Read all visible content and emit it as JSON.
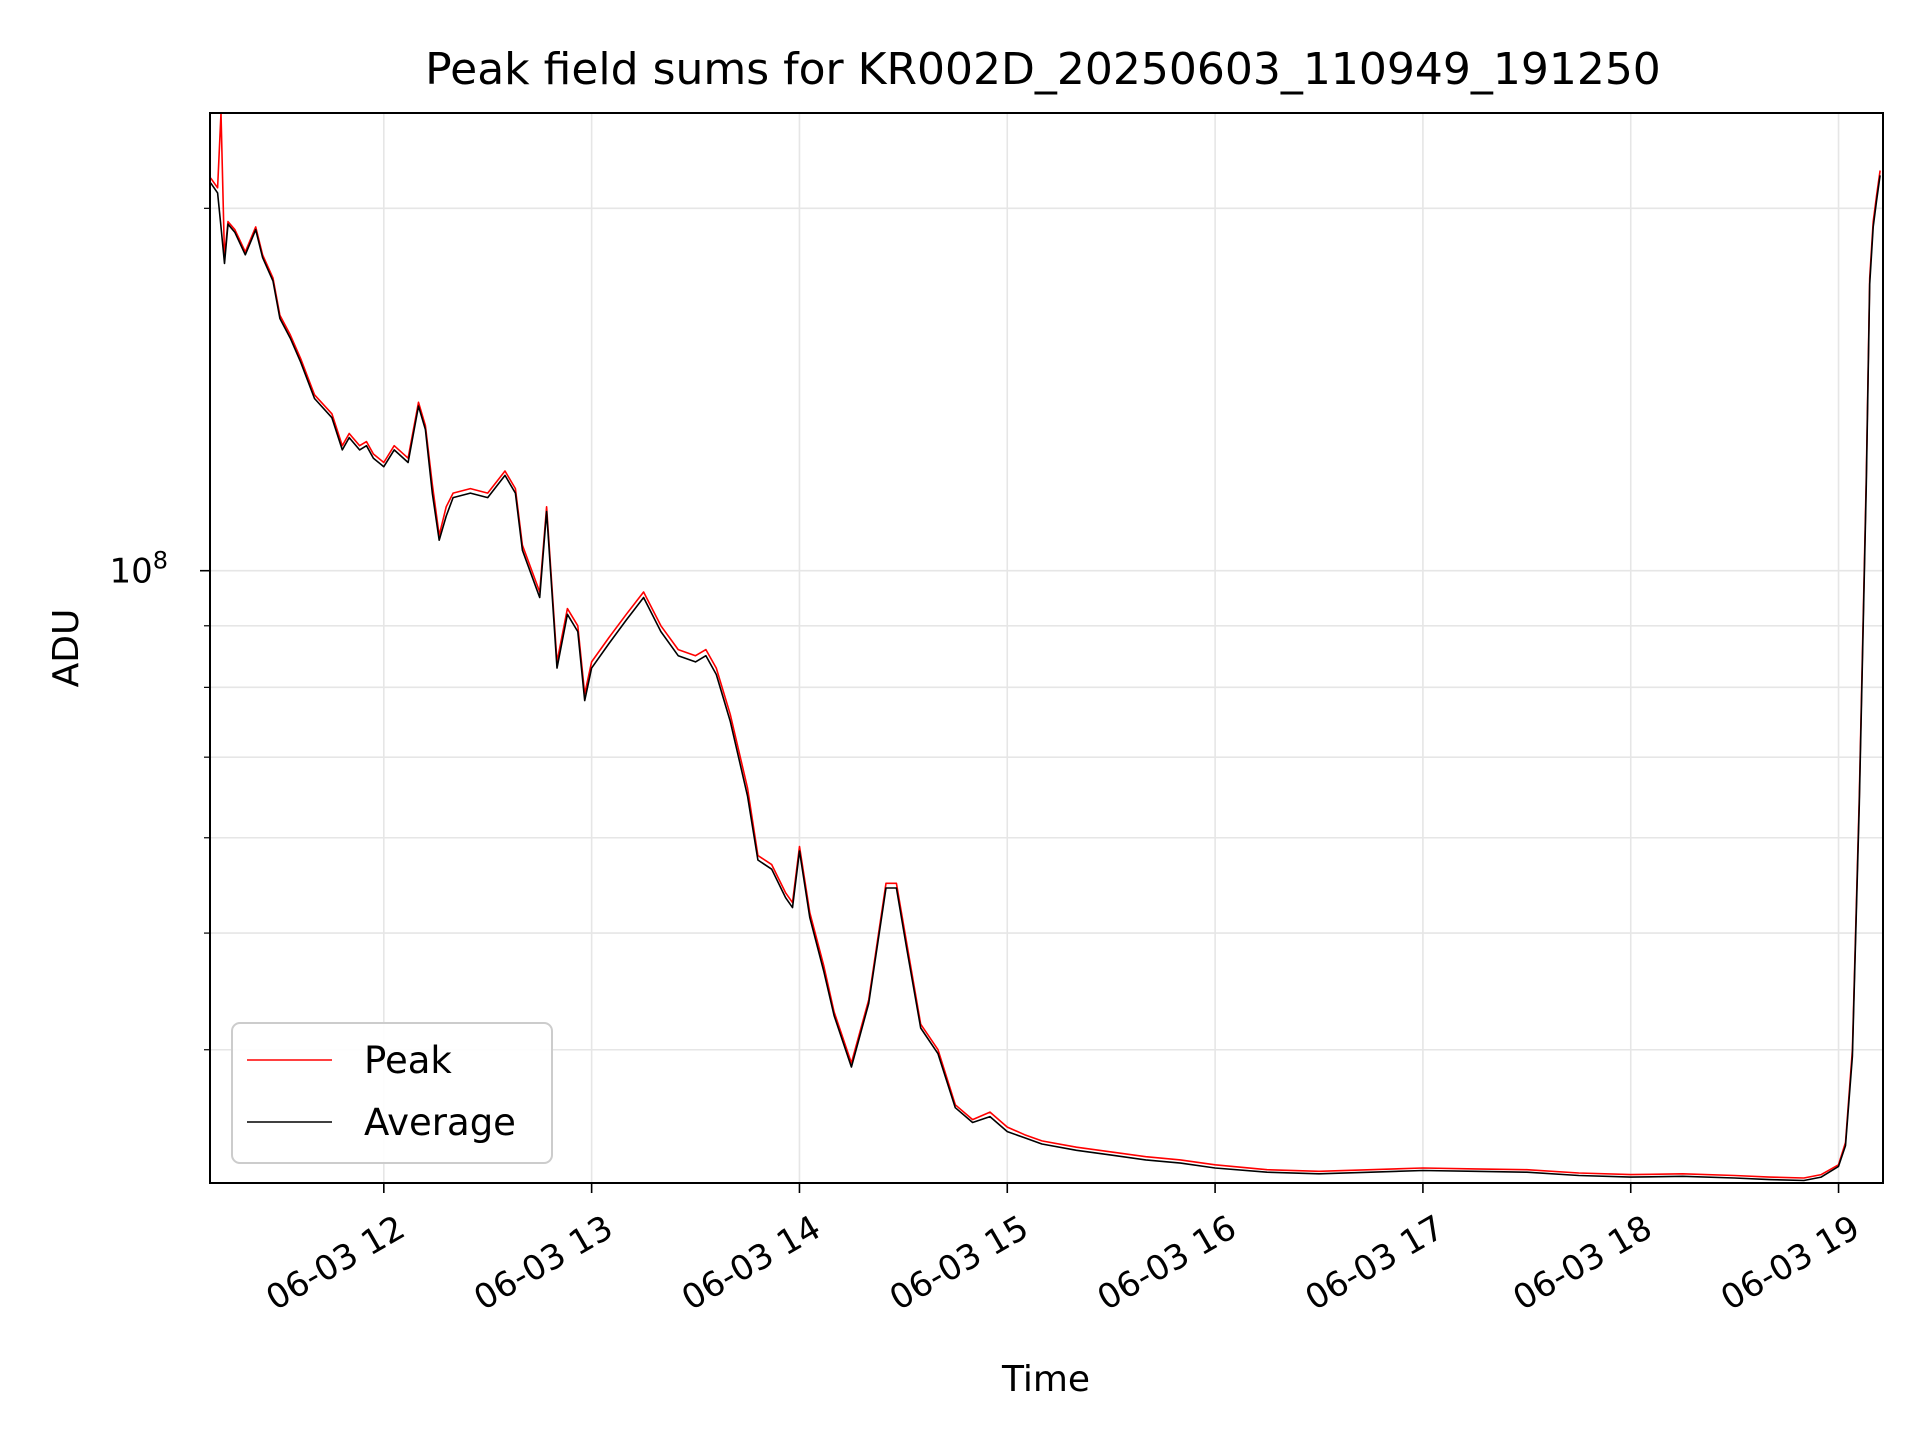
{
  "chart_data": {
    "type": "line",
    "title": "Peak field sums for KR002D_20250603_110949_191250",
    "xlabel": "Time",
    "ylabel": "ADU",
    "y_scale": "log",
    "xlim": [
      "2025-06-03 11:09:49",
      "2025-06-03 19:12:50"
    ],
    "ylim": [
      31000000,
      240000000
    ],
    "grid": true,
    "legend_position": "lower-left",
    "x_tick_labels": [
      "06-03 12",
      "06-03 13",
      "06-03 14",
      "06-03 15",
      "06-03 16",
      "06-03 17",
      "06-03 18",
      "06-03 19"
    ],
    "y_tick_labels": [
      {
        "base": "10",
        "exp": "8"
      }
    ],
    "series": [
      {
        "name": "Peak",
        "color": "#ff0000",
        "x": [
          "2025-06-03 11:10:00",
          "2025-06-03 11:12:00",
          "2025-06-03 11:13:00",
          "2025-06-03 11:14:00",
          "2025-06-03 11:15:00",
          "2025-06-03 11:17:00",
          "2025-06-03 11:20:00",
          "2025-06-03 11:23:00",
          "2025-06-03 11:25:00",
          "2025-06-03 11:28:00",
          "2025-06-03 11:30:00",
          "2025-06-03 11:33:00",
          "2025-06-03 11:36:00",
          "2025-06-03 11:40:00",
          "2025-06-03 11:45:00",
          "2025-06-03 11:48:00",
          "2025-06-03 11:50:00",
          "2025-06-03 11:53:00",
          "2025-06-03 11:55:00",
          "2025-06-03 11:57:00",
          "2025-06-03 12:00:00",
          "2025-06-03 12:03:00",
          "2025-06-03 12:07:00",
          "2025-06-03 12:10:00",
          "2025-06-03 12:12:00",
          "2025-06-03 12:14:00",
          "2025-06-03 12:16:00",
          "2025-06-03 12:18:00",
          "2025-06-03 12:20:00",
          "2025-06-03 12:25:00",
          "2025-06-03 12:30:00",
          "2025-06-03 12:35:00",
          "2025-06-03 12:38:00",
          "2025-06-03 12:40:00",
          "2025-06-03 12:45:00",
          "2025-06-03 12:47:00",
          "2025-06-03 12:50:00",
          "2025-06-03 12:53:00",
          "2025-06-03 12:56:00",
          "2025-06-03 12:58:00",
          "2025-06-03 13:00:00",
          "2025-06-03 13:05:00",
          "2025-06-03 13:10:00",
          "2025-06-03 13:15:00",
          "2025-06-03 13:20:00",
          "2025-06-03 13:25:00",
          "2025-06-03 13:30:00",
          "2025-06-03 13:33:00",
          "2025-06-03 13:36:00",
          "2025-06-03 13:40:00",
          "2025-06-03 13:45:00",
          "2025-06-03 13:48:00",
          "2025-06-03 13:52:00",
          "2025-06-03 13:56:00",
          "2025-06-03 13:58:00",
          "2025-06-03 14:00:00",
          "2025-06-03 14:03:00",
          "2025-06-03 14:07:00",
          "2025-06-03 14:10:00",
          "2025-06-03 14:15:00",
          "2025-06-03 14:20:00",
          "2025-06-03 14:25:00",
          "2025-06-03 14:28:00",
          "2025-06-03 14:31:00",
          "2025-06-03 14:35:00",
          "2025-06-03 14:40:00",
          "2025-06-03 14:45:00",
          "2025-06-03 14:50:00",
          "2025-06-03 14:55:00",
          "2025-06-03 15:00:00",
          "2025-06-03 15:05:00",
          "2025-06-03 15:10:00",
          "2025-06-03 15:20:00",
          "2025-06-03 15:30:00",
          "2025-06-03 15:40:00",
          "2025-06-03 15:50:00",
          "2025-06-03 16:00:00",
          "2025-06-03 16:15:00",
          "2025-06-03 16:30:00",
          "2025-06-03 16:45:00",
          "2025-06-03 17:00:00",
          "2025-06-03 17:15:00",
          "2025-06-03 17:30:00",
          "2025-06-03 17:45:00",
          "2025-06-03 18:00:00",
          "2025-06-03 18:15:00",
          "2025-06-03 18:30:00",
          "2025-06-03 18:40:00",
          "2025-06-03 18:50:00",
          "2025-06-03 18:55:00",
          "2025-06-03 19:00:00",
          "2025-06-03 19:02:00",
          "2025-06-03 19:04:00",
          "2025-06-03 19:06:00",
          "2025-06-03 19:08:00",
          "2025-06-03 19:09:00",
          "2025-06-03 19:10:00",
          "2025-06-03 19:11:00",
          "2025-06-03 19:12:00"
        ],
        "values": [
          212000000,
          208000000,
          240000000,
          182000000,
          195000000,
          192000000,
          184000000,
          193000000,
          183000000,
          175000000,
          163000000,
          157000000,
          150000000,
          140000000,
          135000000,
          127000000,
          130000000,
          127000000,
          128000000,
          125000000,
          123000000,
          127000000,
          124000000,
          138000000,
          132000000,
          118000000,
          107000000,
          113000000,
          116000000,
          117000000,
          116000000,
          121000000,
          117000000,
          105000000,
          96000000,
          113000000,
          84000000,
          93000000,
          90000000,
          79000000,
          84000000,
          88000000,
          92000000,
          96000000,
          90000000,
          86000000,
          85000000,
          86000000,
          83000000,
          76000000,
          66000000,
          58000000,
          57000000,
          54000000,
          53000000,
          59000000,
          52000000,
          47000000,
          43000000,
          39000000,
          44000000,
          55000000,
          55000000,
          49000000,
          42000000,
          40000000,
          36000000,
          35000000,
          35500000,
          34500000,
          34000000,
          33600000,
          33200000,
          32900000,
          32600000,
          32400000,
          32100000,
          31800000,
          31700000,
          31800000,
          31900000,
          31850000,
          31800000,
          31600000,
          31500000,
          31550000,
          31450000,
          31350000,
          31300000,
          31500000,
          32100000,
          33500000,
          40000000,
          65000000,
          120000000,
          175000000,
          195000000,
          205000000,
          215000000
        ]
      },
      {
        "name": "Average",
        "color": "#000000",
        "x": [
          "2025-06-03 11:10:00",
          "2025-06-03 11:12:00",
          "2025-06-03 11:13:00",
          "2025-06-03 11:14:00",
          "2025-06-03 11:15:00",
          "2025-06-03 11:17:00",
          "2025-06-03 11:20:00",
          "2025-06-03 11:23:00",
          "2025-06-03 11:25:00",
          "2025-06-03 11:28:00",
          "2025-06-03 11:30:00",
          "2025-06-03 11:33:00",
          "2025-06-03 11:36:00",
          "2025-06-03 11:40:00",
          "2025-06-03 11:45:00",
          "2025-06-03 11:48:00",
          "2025-06-03 11:50:00",
          "2025-06-03 11:53:00",
          "2025-06-03 11:55:00",
          "2025-06-03 11:57:00",
          "2025-06-03 12:00:00",
          "2025-06-03 12:03:00",
          "2025-06-03 12:07:00",
          "2025-06-03 12:10:00",
          "2025-06-03 12:12:00",
          "2025-06-03 12:14:00",
          "2025-06-03 12:16:00",
          "2025-06-03 12:18:00",
          "2025-06-03 12:20:00",
          "2025-06-03 12:25:00",
          "2025-06-03 12:30:00",
          "2025-06-03 12:35:00",
          "2025-06-03 12:38:00",
          "2025-06-03 12:40:00",
          "2025-06-03 12:45:00",
          "2025-06-03 12:47:00",
          "2025-06-03 12:50:00",
          "2025-06-03 12:53:00",
          "2025-06-03 12:56:00",
          "2025-06-03 12:58:00",
          "2025-06-03 13:00:00",
          "2025-06-03 13:05:00",
          "2025-06-03 13:10:00",
          "2025-06-03 13:15:00",
          "2025-06-03 13:20:00",
          "2025-06-03 13:25:00",
          "2025-06-03 13:30:00",
          "2025-06-03 13:33:00",
          "2025-06-03 13:36:00",
          "2025-06-03 13:40:00",
          "2025-06-03 13:45:00",
          "2025-06-03 13:48:00",
          "2025-06-03 13:52:00",
          "2025-06-03 13:56:00",
          "2025-06-03 13:58:00",
          "2025-06-03 14:00:00",
          "2025-06-03 14:03:00",
          "2025-06-03 14:07:00",
          "2025-06-03 14:10:00",
          "2025-06-03 14:15:00",
          "2025-06-03 14:20:00",
          "2025-06-03 14:25:00",
          "2025-06-03 14:28:00",
          "2025-06-03 14:31:00",
          "2025-06-03 14:35:00",
          "2025-06-03 14:40:00",
          "2025-06-03 14:45:00",
          "2025-06-03 14:50:00",
          "2025-06-03 14:55:00",
          "2025-06-03 15:00:00",
          "2025-06-03 15:05:00",
          "2025-06-03 15:10:00",
          "2025-06-03 15:20:00",
          "2025-06-03 15:30:00",
          "2025-06-03 15:40:00",
          "2025-06-03 15:50:00",
          "2025-06-03 16:00:00",
          "2025-06-03 16:15:00",
          "2025-06-03 16:30:00",
          "2025-06-03 16:45:00",
          "2025-06-03 17:00:00",
          "2025-06-03 17:15:00",
          "2025-06-03 17:30:00",
          "2025-06-03 17:45:00",
          "2025-06-03 18:00:00",
          "2025-06-03 18:15:00",
          "2025-06-03 18:30:00",
          "2025-06-03 18:40:00",
          "2025-06-03 18:50:00",
          "2025-06-03 18:55:00",
          "2025-06-03 19:00:00",
          "2025-06-03 19:02:00",
          "2025-06-03 19:04:00",
          "2025-06-03 19:06:00",
          "2025-06-03 19:08:00",
          "2025-06-03 19:09:00",
          "2025-06-03 19:10:00",
          "2025-06-03 19:11:00",
          "2025-06-03 19:12:00"
        ],
        "values": [
          210000000,
          206000000,
          193000000,
          180000000,
          194000000,
          191000000,
          183000000,
          192000000,
          182000000,
          174000000,
          162000000,
          156000000,
          149000000,
          139000000,
          134000000,
          126000000,
          129000000,
          126000000,
          127000000,
          124000000,
          122000000,
          126000000,
          123000000,
          137000000,
          131000000,
          116000000,
          106000000,
          111000000,
          115000000,
          116000000,
          115000000,
          120000000,
          116000000,
          104000000,
          95000000,
          112000000,
          83000000,
          92000000,
          89000000,
          78000000,
          83000000,
          87000000,
          91000000,
          95000000,
          89000000,
          85000000,
          84000000,
          85000000,
          82000000,
          75000000,
          65000000,
          57500000,
          56500000,
          53500000,
          52500000,
          58500000,
          51500000,
          46500000,
          42700000,
          38700000,
          43700000,
          54500000,
          54500000,
          48500000,
          41700000,
          39700000,
          35800000,
          34800000,
          35200000,
          34200000,
          33800000,
          33400000,
          33000000,
          32700000,
          32400000,
          32200000,
          31900000,
          31650000,
          31550000,
          31650000,
          31750000,
          31700000,
          31650000,
          31450000,
          31350000,
          31400000,
          31300000,
          31200000,
          31150000,
          31350000,
          32000000,
          33300000,
          39500000,
          64000000,
          118000000,
          173000000,
          193000000,
          203000000,
          213000000
        ]
      }
    ]
  }
}
